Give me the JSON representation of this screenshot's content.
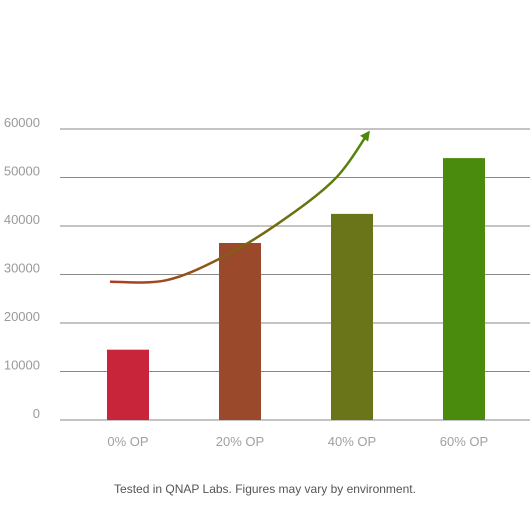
{
  "chart_data": {
    "type": "bar",
    "categories": [
      "0% OP",
      "20% OP",
      "40% OP",
      "60% OP"
    ],
    "values": [
      14500,
      36500,
      42500,
      54000
    ],
    "ylim": [
      0,
      60000
    ],
    "yticks": [
      0,
      10000,
      20000,
      30000,
      40000,
      50000,
      60000
    ],
    "grid": true,
    "bar_colors": [
      "#c8253a",
      "#9a4a2a",
      "#6a7418",
      "#4a8a0c"
    ],
    "trend_arrow": {
      "colors": [
        "#b23a22",
        "#4f8708"
      ],
      "points": [
        [
          0,
          28500
        ],
        [
          0.5,
          28800
        ],
        [
          1,
          33500
        ],
        [
          1.5,
          40500
        ],
        [
          2,
          49500
        ],
        [
          2.3,
          59000
        ]
      ]
    },
    "footnote": "Tested in QNAP Labs. Figures may vary by environment."
  }
}
